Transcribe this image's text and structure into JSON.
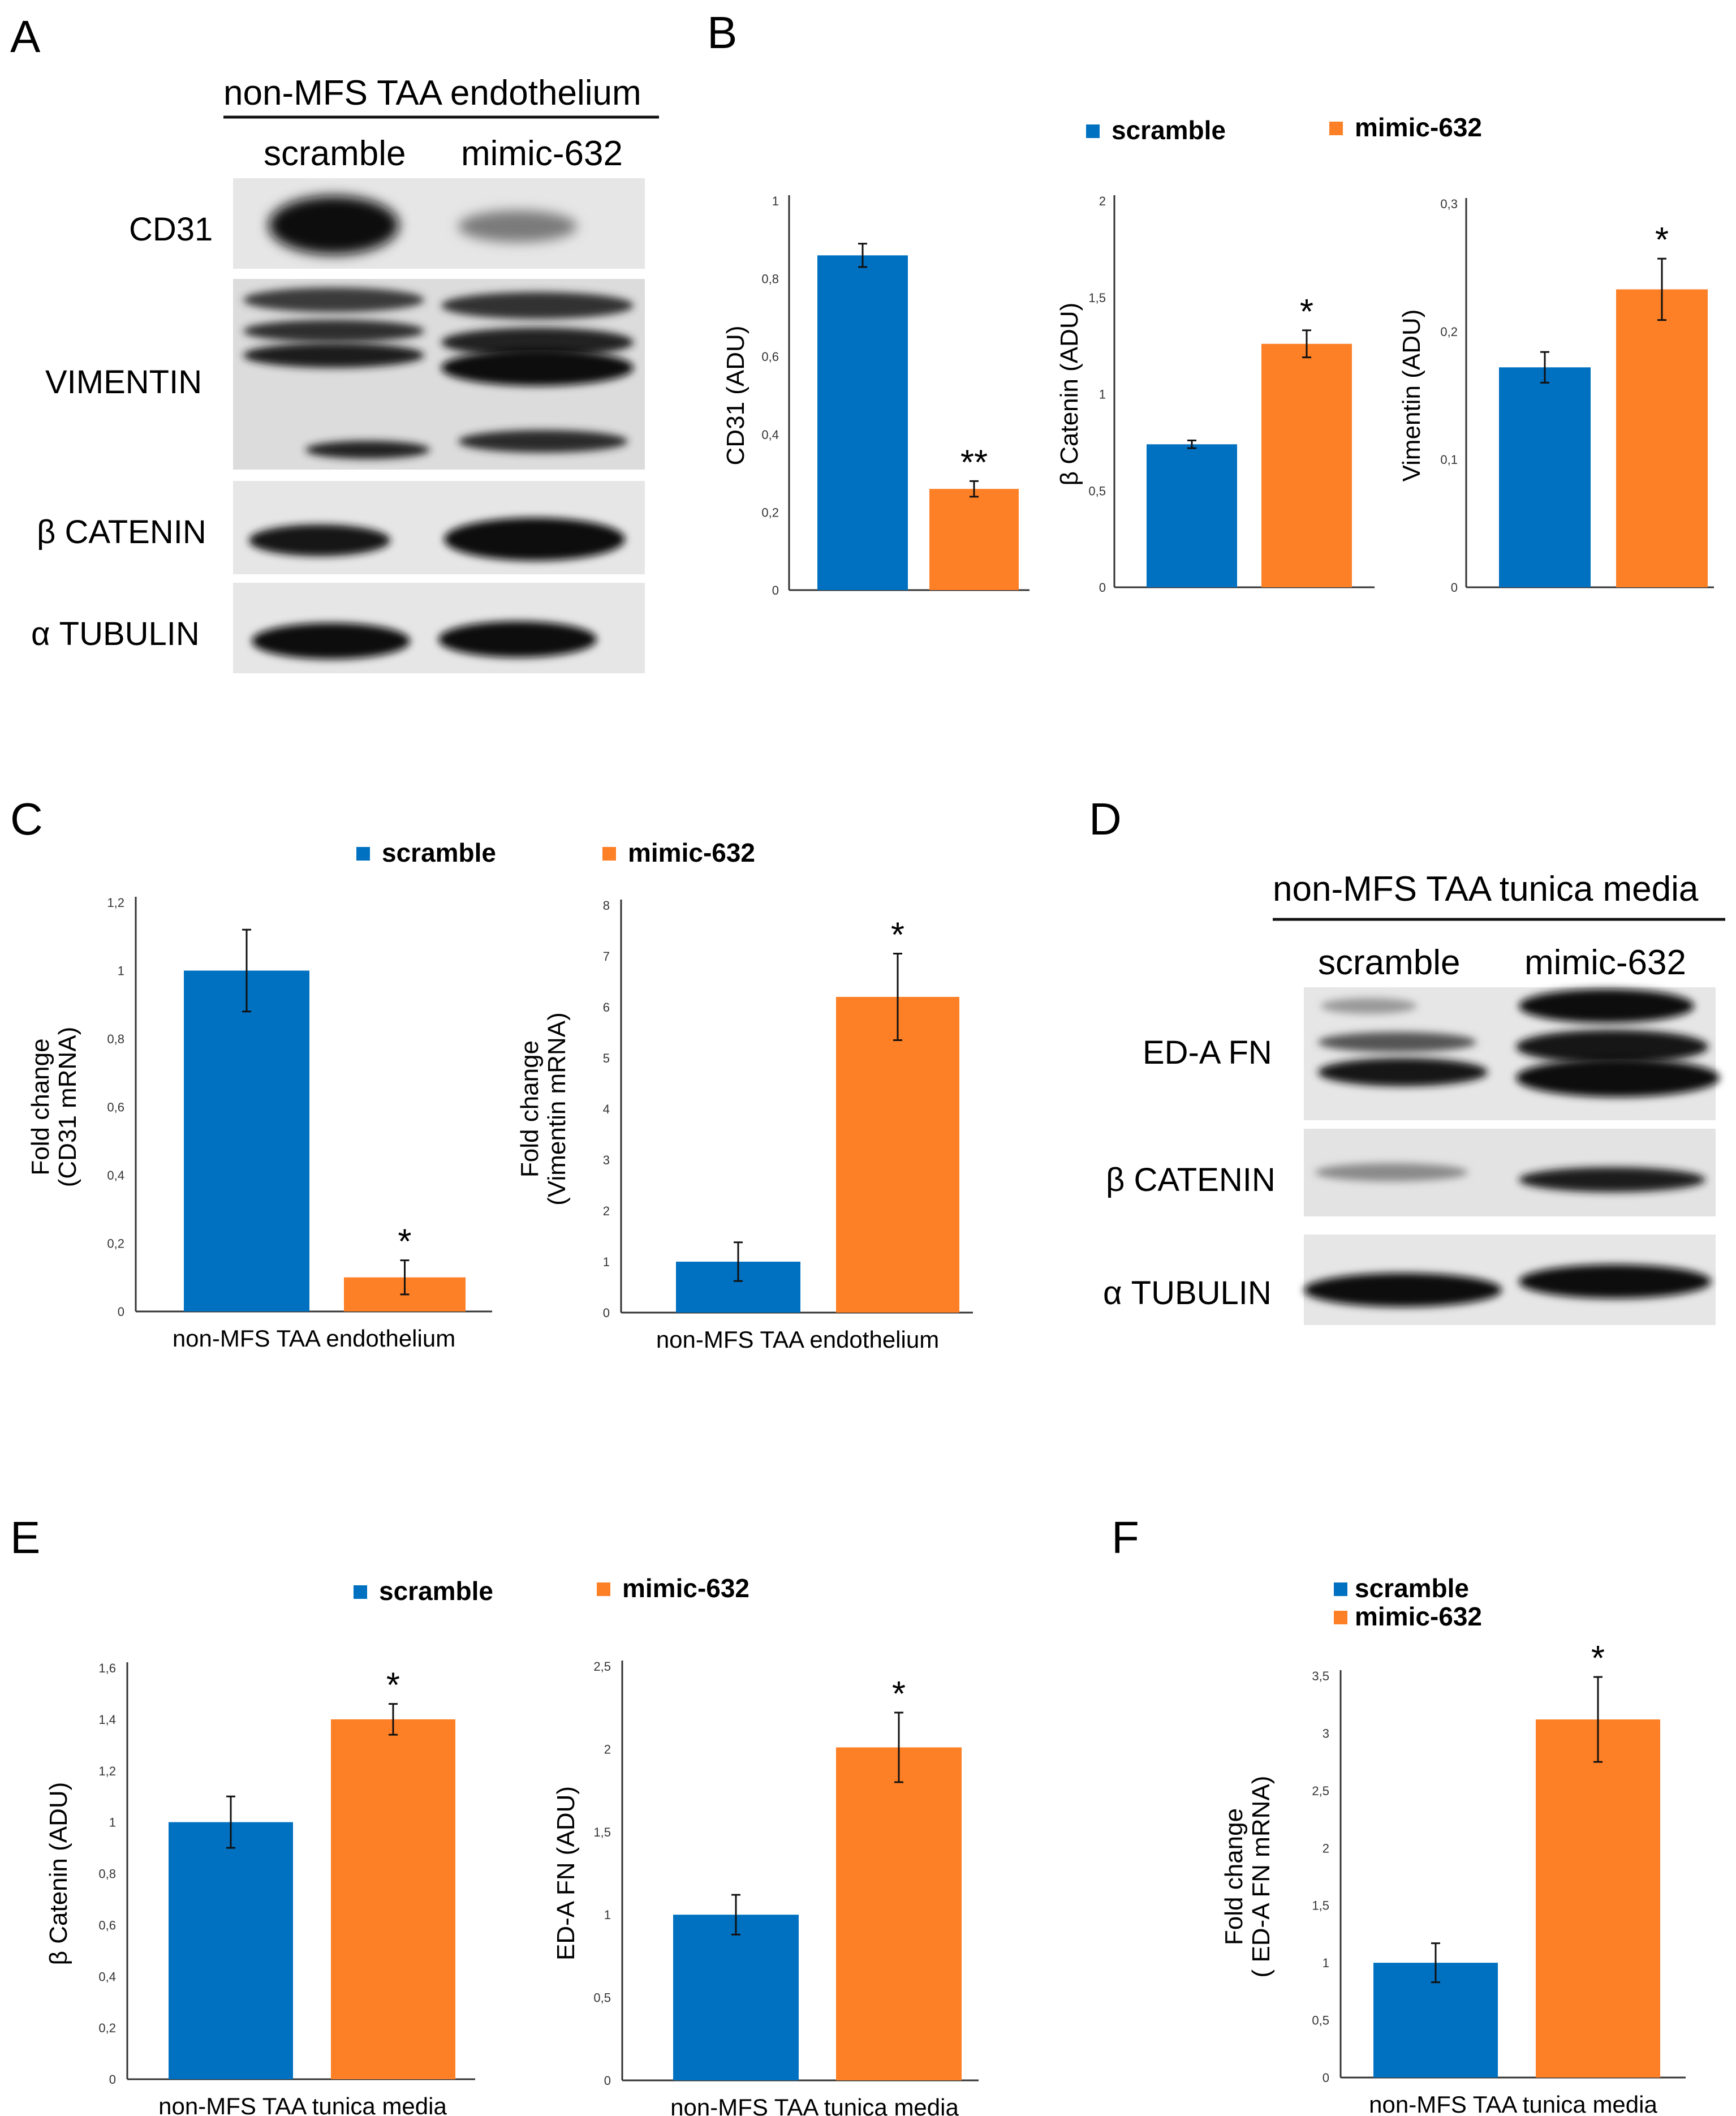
{
  "colors": {
    "scramble": "#0070c0",
    "mimic": "#fd7f26",
    "axis": "#333333",
    "band": "#111111",
    "membrane": "#e3e3e3"
  },
  "panels": {
    "A": {
      "letter": "A",
      "header": "non-MFS TAA endothelium",
      "columns": [
        "scramble",
        "mimic-632"
      ],
      "blots": [
        {
          "label": "CD31"
        },
        {
          "label": "VIMENTIN"
        },
        {
          "label": "β CATENIN"
        },
        {
          "label": "α TUBULIN"
        }
      ]
    },
    "B": {
      "letter": "B"
    },
    "C": {
      "letter": "C"
    },
    "D": {
      "letter": "D",
      "header": "non-MFS TAA tunica media",
      "columns": [
        "scramble",
        "mimic-632"
      ],
      "blots": [
        {
          "label": "ED-A FN"
        },
        {
          "label": "β CATENIN"
        },
        {
          "label": "α TUBULIN"
        }
      ]
    },
    "E": {
      "letter": "E"
    },
    "F": {
      "letter": "F"
    }
  },
  "legends": {
    "B": [
      "scramble",
      "mimic-632"
    ],
    "C": [
      "scramble",
      "mimic-632"
    ],
    "E": [
      "scramble",
      "mimic-632"
    ],
    "F": [
      "scramble",
      "mimic-632"
    ]
  },
  "chart_data": [
    {
      "id": "B1",
      "panel": "B",
      "type": "bar",
      "ylabel": "CD31 (ADU)",
      "xlabel": "",
      "categories": [
        "scramble",
        "mimic-632"
      ],
      "values": [
        0.86,
        0.26
      ],
      "errors": [
        0.03,
        0.02
      ],
      "significance": [
        "",
        "**"
      ],
      "ylim": [
        0,
        1
      ],
      "yticks": [
        "0",
        "0,2",
        "0,4",
        "0,6",
        "0,8",
        "1"
      ]
    },
    {
      "id": "B2",
      "panel": "B",
      "type": "bar",
      "ylabel": "β Catenin (ADU)",
      "xlabel": "",
      "categories": [
        "scramble",
        "mimic-632"
      ],
      "values": [
        0.74,
        1.26
      ],
      "errors": [
        0.02,
        0.07
      ],
      "significance": [
        "",
        "*"
      ],
      "ylim": [
        0,
        2
      ],
      "yticks": [
        "0",
        "0,5",
        "1",
        "1,5",
        "2"
      ]
    },
    {
      "id": "B3",
      "panel": "B",
      "type": "bar",
      "ylabel": "Vimentin (ADU)",
      "xlabel": "",
      "categories": [
        "scramble",
        "mimic-632"
      ],
      "values": [
        0.172,
        0.233
      ],
      "errors": [
        0.012,
        0.024
      ],
      "significance": [
        "",
        "*"
      ],
      "ylim": [
        0,
        0.3
      ],
      "yticks": [
        "0",
        "0,1",
        "0,2",
        "0,3"
      ]
    },
    {
      "id": "C1",
      "panel": "C",
      "type": "bar",
      "ylabel": "Fold change\n(CD31 mRNA)",
      "xlabel": "non-MFS TAA endothelium",
      "categories": [
        "scramble",
        "mimic-632"
      ],
      "values": [
        1.0,
        0.1
      ],
      "errors": [
        0.12,
        0.05
      ],
      "significance": [
        "",
        "*"
      ],
      "ylim": [
        0,
        1.2
      ],
      "yticks": [
        "0",
        "0,2",
        "0,4",
        "0,6",
        "0,8",
        "1",
        "1,2"
      ]
    },
    {
      "id": "C2",
      "panel": "C",
      "type": "bar",
      "ylabel": "Fold change\n(Vimentin mRNA)",
      "xlabel": "non-MFS TAA endothelium",
      "categories": [
        "scramble",
        "mimic-632"
      ],
      "values": [
        1.0,
        6.2
      ],
      "errors": [
        0.38,
        0.85
      ],
      "significance": [
        "",
        "*"
      ],
      "ylim": [
        0,
        8
      ],
      "yticks": [
        "0",
        "1",
        "2",
        "3",
        "4",
        "5",
        "6",
        "7",
        "8"
      ]
    },
    {
      "id": "E1",
      "panel": "E",
      "type": "bar",
      "ylabel": "β Catenin (ADU)",
      "xlabel": "non-MFS TAA tunica media",
      "categories": [
        "scramble",
        "mimic-632"
      ],
      "values": [
        1.0,
        1.4
      ],
      "errors": [
        0.1,
        0.06
      ],
      "significance": [
        "",
        "*"
      ],
      "ylim": [
        0,
        1.6
      ],
      "yticks": [
        "0",
        "0,2",
        "0,4",
        "0,6",
        "0,8",
        "1",
        "1,2",
        "1,4",
        "1,6"
      ]
    },
    {
      "id": "E2",
      "panel": "E",
      "type": "bar",
      "ylabel": "ED-A FN  (ADU)",
      "xlabel": "non-MFS TAA tunica media",
      "categories": [
        "scramble",
        "mimic-632"
      ],
      "values": [
        1.0,
        2.01
      ],
      "errors": [
        0.12,
        0.21
      ],
      "significance": [
        "",
        "*"
      ],
      "ylim": [
        0,
        2.5
      ],
      "yticks": [
        "0",
        "0,5",
        "1",
        "1,5",
        "2",
        "2,5"
      ]
    },
    {
      "id": "F1",
      "panel": "F",
      "type": "bar",
      "ylabel": "Fold change\n( ED-A FN mRNA)",
      "xlabel": "non-MFS TAA tunica media",
      "categories": [
        "scramble",
        "mimic-632"
      ],
      "values": [
        1.0,
        3.12
      ],
      "errors": [
        0.17,
        0.37
      ],
      "significance": [
        "",
        "*"
      ],
      "ylim": [
        0,
        3.5
      ],
      "yticks": [
        "0",
        "0,5",
        "1",
        "1,5",
        "2",
        "2,5",
        "3",
        "3,5"
      ]
    }
  ]
}
